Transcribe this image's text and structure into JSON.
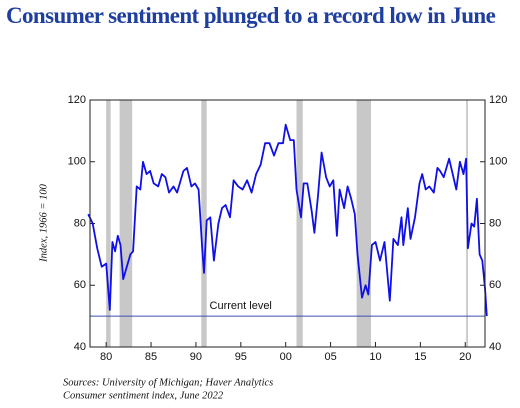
{
  "chart_data": {
    "type": "line",
    "title": "Consumer sentiment plunged to a record low in June",
    "y_label": "Index, 1966 = 100",
    "source": "Sources: University of Michigan; Haver Analytics",
    "note": "Consumer sentiment index, June 2022",
    "x": [
      1978.0,
      1978.5,
      1979.0,
      1979.5,
      1980.0,
      1980.4,
      1980.7,
      1981.0,
      1981.3,
      1981.6,
      1981.9,
      1982.3,
      1982.7,
      1983.0,
      1983.4,
      1983.8,
      1984.1,
      1984.5,
      1984.9,
      1985.3,
      1985.8,
      1986.2,
      1986.6,
      1987.0,
      1987.5,
      1987.9,
      1988.2,
      1988.6,
      1989.0,
      1989.5,
      1989.9,
      1990.3,
      1990.7,
      1990.9,
      1991.2,
      1991.6,
      1992.0,
      1992.5,
      1992.9,
      1993.3,
      1993.8,
      1994.2,
      1994.7,
      1995.2,
      1995.7,
      1996.2,
      1996.7,
      1997.2,
      1997.7,
      1998.2,
      1998.7,
      1999.2,
      1999.7,
      2000.0,
      2000.5,
      2000.9,
      2001.2,
      2001.7,
      2002.0,
      2002.4,
      2002.9,
      2003.2,
      2003.6,
      2004.0,
      2004.5,
      2004.9,
      2005.3,
      2005.7,
      2006.0,
      2006.5,
      2006.9,
      2007.3,
      2007.7,
      2008.0,
      2008.5,
      2008.9,
      2009.2,
      2009.6,
      2010.0,
      2010.5,
      2011.0,
      2011.6,
      2012.0,
      2012.5,
      2012.9,
      2013.1,
      2013.6,
      2013.9,
      2014.4,
      2014.9,
      2015.2,
      2015.6,
      2016.0,
      2016.5,
      2016.9,
      2017.2,
      2017.6,
      2018.2,
      2018.6,
      2019.0,
      2019.4,
      2019.8,
      2020.1,
      2020.3,
      2020.7,
      2021.0,
      2021.3,
      2021.6,
      2021.9,
      2022.2,
      2022.4
    ],
    "series": [
      {
        "name": "Consumer sentiment index",
        "color": "#1010e6",
        "values": [
          83,
          80,
          72,
          66,
          67,
          52,
          74,
          71,
          76,
          73,
          62,
          66,
          70,
          71,
          92,
          91,
          100,
          96,
          97,
          93,
          92,
          96,
          95,
          90,
          92,
          90,
          93,
          97,
          98,
          92,
          93,
          91,
          72,
          64,
          81,
          82,
          68,
          80,
          85,
          86,
          82,
          94,
          92,
          91,
          94,
          90,
          96,
          99,
          106,
          106,
          102,
          106,
          106,
          112,
          107,
          107,
          91,
          82,
          93,
          93,
          84,
          77,
          89,
          103,
          95,
          92,
          94,
          76,
          91,
          85,
          92,
          88,
          83,
          70,
          56,
          60,
          57,
          73,
          74,
          68,
          74,
          55,
          75,
          73,
          82,
          73,
          85,
          75,
          82,
          93,
          96,
          91,
          92,
          90,
          98,
          97,
          95,
          101,
          96,
          91,
          100,
          96,
          101,
          72,
          80,
          79,
          88,
          70,
          68,
          59,
          50
        ]
      }
    ],
    "shaded_periods": [
      [
        1980.0,
        1980.5
      ],
      [
        1981.5,
        1982.9
      ],
      [
        1990.6,
        1991.2
      ],
      [
        2001.2,
        2001.9
      ],
      [
        2007.9,
        2009.5
      ],
      [
        2020.1,
        2020.3
      ]
    ],
    "shade_color": "#c8c8c8",
    "reference_line": {
      "value": 50,
      "label": "Current level",
      "color": "#3a4fb0"
    },
    "xlim": [
      1978.2,
      2022.2
    ],
    "xticks": [
      {
        "value": 1980,
        "label": "80"
      },
      {
        "value": 1985,
        "label": "85"
      },
      {
        "value": 1990,
        "label": "90"
      },
      {
        "value": 1995,
        "label": "95"
      },
      {
        "value": 2000,
        "label": "00"
      },
      {
        "value": 2005,
        "label": "05"
      },
      {
        "value": 2010,
        "label": "10"
      },
      {
        "value": 2015,
        "label": "15"
      },
      {
        "value": 2020,
        "label": "20"
      }
    ],
    "ylim": [
      40,
      120
    ],
    "yticks": [
      40,
      60,
      80,
      100,
      120
    ],
    "right_axis": true
  }
}
